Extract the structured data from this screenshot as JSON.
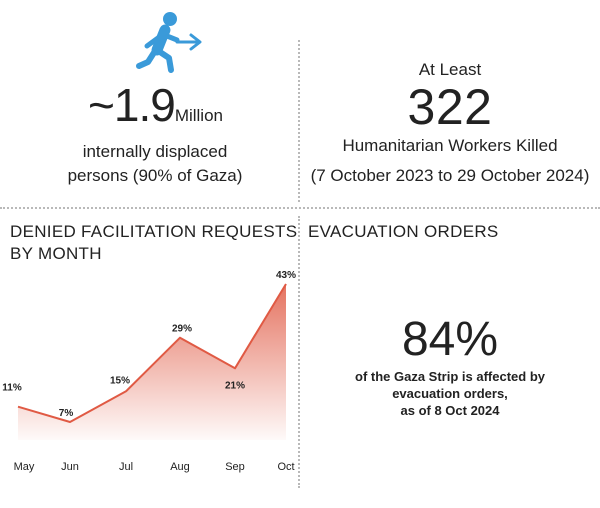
{
  "colors": {
    "accent_blue": "#3a9ad9",
    "line_red": "#e05a44",
    "divider": "#b9b9b9"
  },
  "icons": {
    "displaced": "person-walking-arrow-icon"
  },
  "displaced": {
    "value": "~1.9",
    "unit": "Million",
    "line1": "internally displaced",
    "line2": "persons  (90% of Gaza)"
  },
  "workers": {
    "prefix": "At Least",
    "value": "322",
    "label": "Humanitarian Workers Killed",
    "period": "(7 October 2023 to 29 October 2024)"
  },
  "denied": {
    "title_line1": "DENIED FACILITATION REQUESTS",
    "title_line2": "BY MONTH"
  },
  "evacuation": {
    "title": "EVACUATION ORDERS",
    "value": "84%",
    "line1": "of the Gaza Strip is affected by",
    "line2": "evacuation orders,",
    "line3": "as of 8 Oct 2024"
  },
  "chart_data": {
    "type": "area",
    "title": "DENIED FACILITATION REQUESTS BY MONTH",
    "categories": [
      "May",
      "Jun",
      "Jul",
      "Aug",
      "Sep",
      "Oct"
    ],
    "values": [
      11,
      7,
      15,
      29,
      21,
      43
    ],
    "labels": [
      "11%",
      "7%",
      "15%",
      "29%",
      "21%",
      "43%"
    ],
    "unit": "%",
    "ylim": [
      0,
      45
    ],
    "grid": false,
    "legend": "none"
  }
}
